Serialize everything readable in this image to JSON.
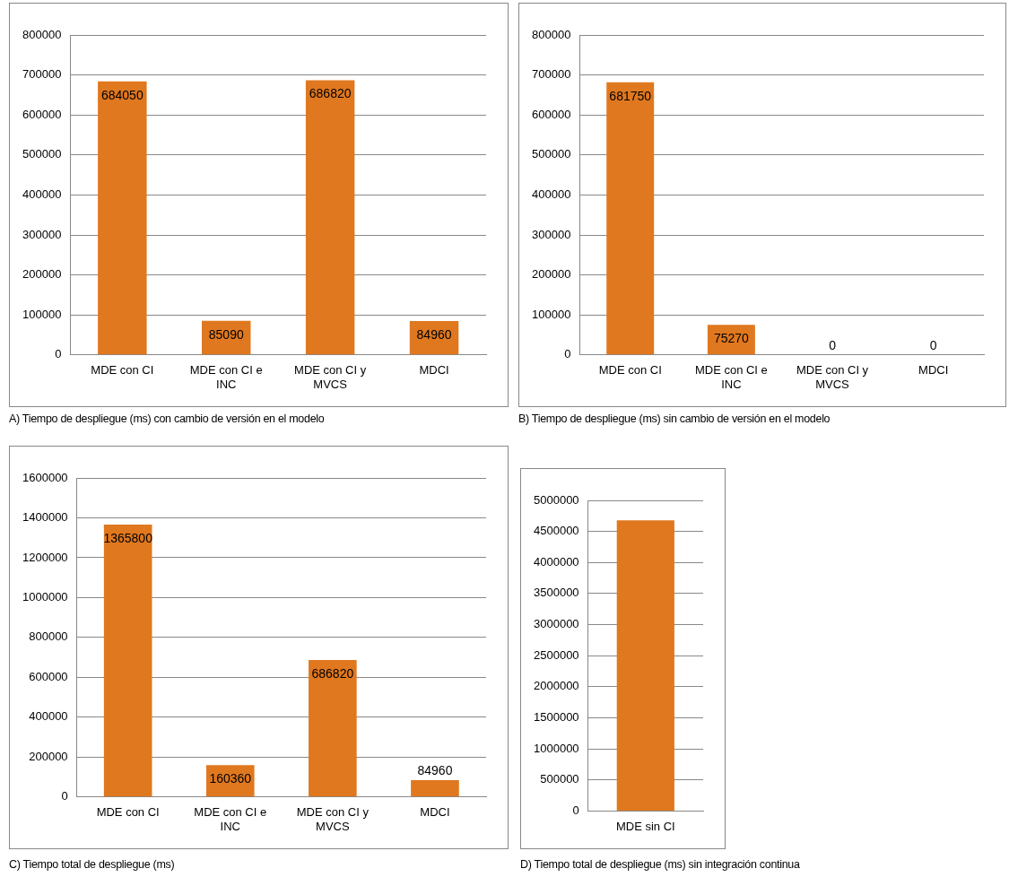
{
  "chart_data": [
    {
      "type": "bar",
      "title": "A) Tiempo de despliegue (ms) con cambio de versión en el modelo",
      "categories": [
        "MDE con CI",
        "MDE con CI e INC",
        "MDE con CI y MVCS",
        "MDCI"
      ],
      "values": [
        684050,
        85090,
        686820,
        84960
      ],
      "color": "#e0781f",
      "ylim": [
        0,
        800000
      ],
      "yticks": [
        0,
        100000,
        200000,
        300000,
        400000,
        500000,
        600000,
        700000,
        800000
      ],
      "grid": "y",
      "data_labels": true
    },
    {
      "type": "bar",
      "title": "B) Tiempo de despliegue (ms) sin cambio de versión en el modelo",
      "categories": [
        "MDE con CI",
        "MDE con CI e INC",
        "MDE con CI y MVCS",
        "MDCI"
      ],
      "values": [
        681750,
        75270,
        0,
        0
      ],
      "color": "#e0781f",
      "ylim": [
        0,
        800000
      ],
      "yticks": [
        0,
        100000,
        200000,
        300000,
        400000,
        500000,
        600000,
        700000,
        800000
      ],
      "grid": "y",
      "data_labels": true
    },
    {
      "type": "bar",
      "title": "C) Tiempo total de despliegue (ms)",
      "categories": [
        "MDE con CI",
        "MDE con CI e INC",
        "MDE con CI y MVCS",
        "MDCI"
      ],
      "values": [
        1365800,
        160360,
        686820,
        84960
      ],
      "color": "#e0781f",
      "ylim": [
        0,
        1600000
      ],
      "yticks": [
        0,
        200000,
        400000,
        600000,
        800000,
        1000000,
        1200000,
        1400000,
        1600000
      ],
      "grid": "y",
      "data_labels": true
    },
    {
      "type": "bar",
      "title": "D) Tiempo total de despliegue (ms) sin integración continua",
      "categories": [
        "MDE sin CI"
      ],
      "values": [
        4680000
      ],
      "color": "#e0781f",
      "ylim": [
        0,
        5000000
      ],
      "yticks": [
        0,
        500000,
        1000000,
        1500000,
        2000000,
        2500000,
        3000000,
        3500000,
        4000000,
        4500000,
        5000000
      ],
      "grid": "y"
    }
  ]
}
